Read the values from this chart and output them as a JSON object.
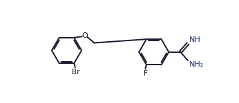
{
  "bg_color": "#ffffff",
  "bond_color": "#1a1a2e",
  "label_color": "#1a1a2e",
  "label_color_blue": "#1a3066",
  "label_Br": "Br",
  "label_O": "O",
  "label_F": "F",
  "label_NH": "NH",
  "label_NH2": "NH₂",
  "figsize": [
    3.46,
    1.5
  ],
  "dpi": 100,
  "lw": 1.4
}
